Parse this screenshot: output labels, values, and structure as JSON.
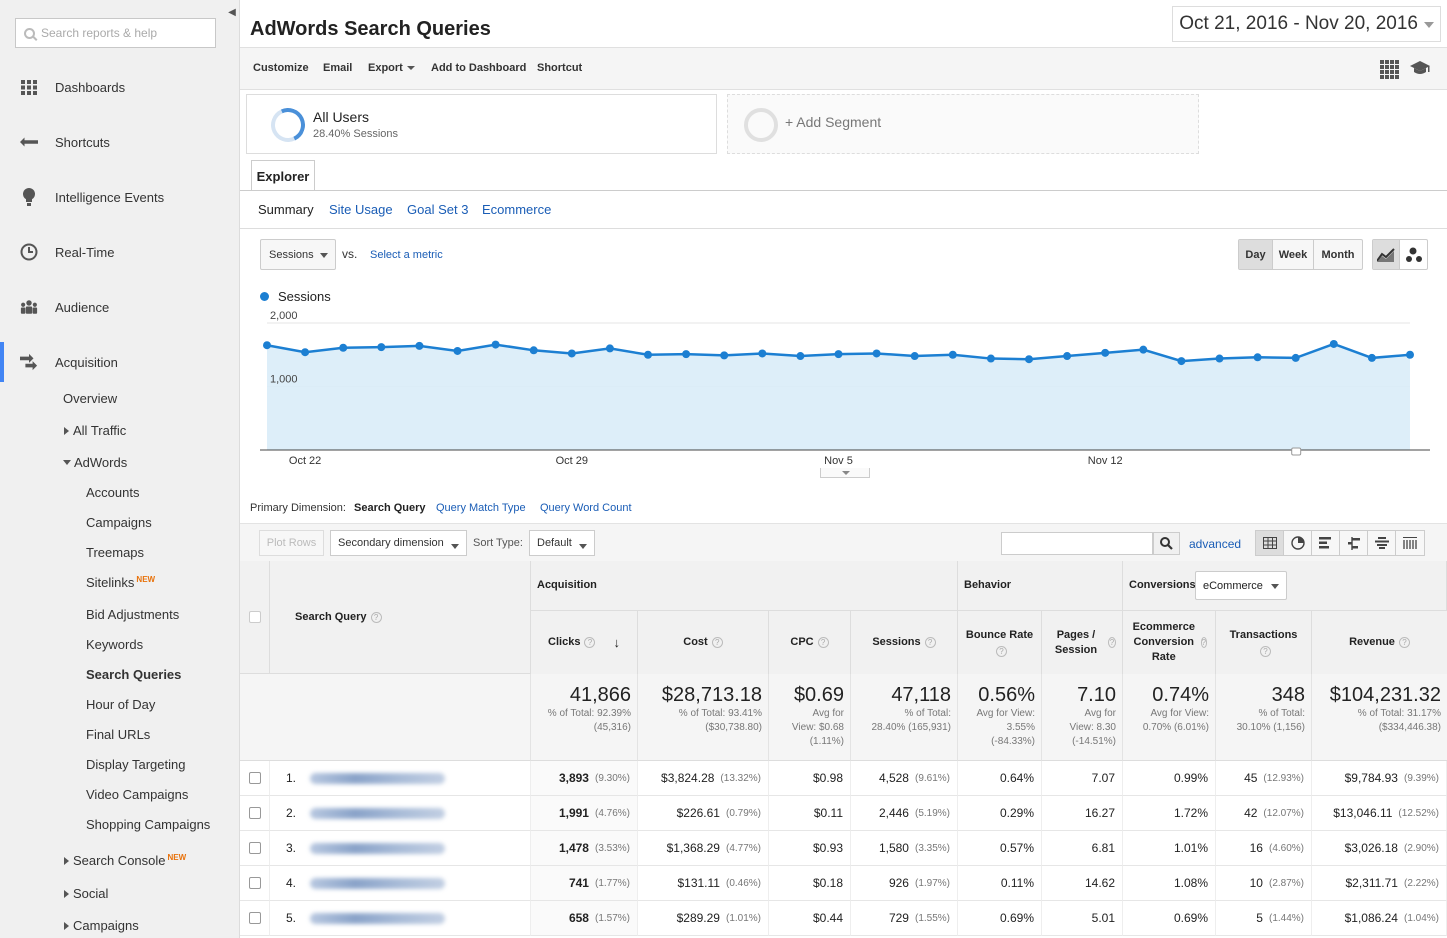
{
  "sidebar": {
    "search_placeholder": "Search reports & help",
    "nav": [
      {
        "label": "Dashboards",
        "icon": "grid-icon"
      },
      {
        "label": "Shortcuts",
        "icon": "shortcut-arrow-icon"
      },
      {
        "label": "Intelligence Events",
        "icon": "lightbulb-icon"
      },
      {
        "label": "Real-Time",
        "icon": "clock-icon"
      },
      {
        "label": "Audience",
        "icon": "people-icon"
      },
      {
        "label": "Acquisition",
        "icon": "acquisition-arrows-icon"
      }
    ],
    "acquisition_children": {
      "overview": "Overview",
      "all_traffic": "All Traffic",
      "adwords": "AdWords",
      "adwords_items": [
        "Accounts",
        "Campaigns",
        "Treemaps",
        "Sitelinks",
        "Bid Adjustments",
        "Keywords",
        "Search Queries",
        "Hour of Day",
        "Final URLs",
        "Display Targeting",
        "Video Campaigns",
        "Shopping Campaigns"
      ],
      "search_console": "Search Console",
      "social": "Social",
      "campaigns": "Campaigns",
      "new_badge": "NEW"
    }
  },
  "header": {
    "title": "AdWords Search Queries",
    "date_range": "Oct 21, 2016 - Nov 20, 2016"
  },
  "toolbar": {
    "customize": "Customize",
    "email": "Email",
    "export": "Export",
    "add_to_dashboard": "Add to Dashboard",
    "shortcut": "Shortcut"
  },
  "segments": {
    "all_users": "All Users",
    "all_users_sub": "28.40% Sessions",
    "add_segment": "+ Add Segment"
  },
  "explorer": {
    "tab": "Explorer",
    "subtabs": [
      "Summary",
      "Site Usage",
      "Goal Set 3",
      "Ecommerce"
    ]
  },
  "chart_controls": {
    "metric": "Sessions",
    "vs": "vs.",
    "select_metric": "Select a metric",
    "periods": [
      "Day",
      "Week",
      "Month"
    ],
    "active_period": "Day"
  },
  "chart_data": {
    "type": "area",
    "series": [
      {
        "name": "Sessions",
        "values": [
          1650,
          1540,
          1610,
          1620,
          1640,
          1560,
          1660,
          1570,
          1520,
          1600,
          1500,
          1510,
          1490,
          1520,
          1480,
          1510,
          1520,
          1480,
          1500,
          1440,
          1430,
          1480,
          1530,
          1580,
          1400,
          1440,
          1460,
          1450,
          1670,
          1450,
          1500
        ]
      }
    ],
    "x_ticks": [
      "Oct 22",
      "Oct 29",
      "Nov 5",
      "Nov 12"
    ],
    "y_ticks": [
      "2,000",
      "1,000"
    ],
    "ylim": [
      0,
      2000
    ],
    "colors": {
      "line": "#1c7fd2",
      "fill": "#d9ecf8"
    }
  },
  "primary_dimension": {
    "label": "Primary Dimension:",
    "current": "Search Query",
    "options": [
      "Query Match Type",
      "Query Word Count"
    ]
  },
  "table_controls": {
    "plot_rows": "Plot Rows",
    "secondary_dimension": "Secondary dimension",
    "sort_type_label": "Sort Type:",
    "sort_type": "Default",
    "advanced": "advanced"
  },
  "table": {
    "dim_header": "Search Query",
    "groups": {
      "acquisition": "Acquisition",
      "behavior": "Behavior",
      "conversions": "Conversions",
      "conversions_select": "eCommerce"
    },
    "columns": [
      "Clicks",
      "Cost",
      "CPC",
      "Sessions",
      "Bounce Rate",
      "Pages / Session",
      "Ecommerce Conversion Rate",
      "Transactions",
      "Revenue"
    ],
    "totals": [
      {
        "value": "41,866",
        "sub": [
          "% of Total: 92.39%",
          "(45,316)"
        ]
      },
      {
        "value": "$28,713.18",
        "sub": [
          "% of Total: 93.41%",
          "($30,738.80)"
        ]
      },
      {
        "value": "$0.69",
        "sub": [
          "Avg for",
          "View: $0.68",
          "(1.11%)"
        ]
      },
      {
        "value": "47,118",
        "sub": [
          "% of Total:",
          "28.40% (165,931)"
        ]
      },
      {
        "value": "0.56%",
        "sub": [
          "Avg for View:",
          "3.55%",
          "(-84.33%)"
        ]
      },
      {
        "value": "7.10",
        "sub": [
          "Avg for",
          "View: 8.30",
          "(-14.51%)"
        ]
      },
      {
        "value": "0.74%",
        "sub": [
          "Avg for View:",
          "0.70% (6.01%)"
        ]
      },
      {
        "value": "348",
        "sub": [
          "% of Total:",
          "30.10% (1,156)"
        ]
      },
      {
        "value": "$104,231.32",
        "sub": [
          "% of Total: 31.17%",
          "($334,446.38)"
        ]
      }
    ],
    "rows": [
      {
        "n": "1.",
        "clicks": "3,893",
        "clicks_pct": "(9.30%)",
        "cost": "$3,824.28",
        "cost_pct": "(13.32%)",
        "cpc": "$0.98",
        "sessions": "4,528",
        "sessions_pct": "(9.61%)",
        "bounce": "0.64%",
        "pps": "7.07",
        "ecr": "0.99%",
        "trans": "45",
        "trans_pct": "(12.93%)",
        "rev": "$9,784.93",
        "rev_pct": "(9.39%)"
      },
      {
        "n": "2.",
        "clicks": "1,991",
        "clicks_pct": "(4.76%)",
        "cost": "$226.61",
        "cost_pct": "(0.79%)",
        "cpc": "$0.11",
        "sessions": "2,446",
        "sessions_pct": "(5.19%)",
        "bounce": "0.29%",
        "pps": "16.27",
        "ecr": "1.72%",
        "trans": "42",
        "trans_pct": "(12.07%)",
        "rev": "$13,046.11",
        "rev_pct": "(12.52%)"
      },
      {
        "n": "3.",
        "clicks": "1,478",
        "clicks_pct": "(3.53%)",
        "cost": "$1,368.29",
        "cost_pct": "(4.77%)",
        "cpc": "$0.93",
        "sessions": "1,580",
        "sessions_pct": "(3.35%)",
        "bounce": "0.57%",
        "pps": "6.81",
        "ecr": "1.01%",
        "trans": "16",
        "trans_pct": "(4.60%)",
        "rev": "$3,026.18",
        "rev_pct": "(2.90%)"
      },
      {
        "n": "4.",
        "clicks": "741",
        "clicks_pct": "(1.77%)",
        "cost": "$131.11",
        "cost_pct": "(0.46%)",
        "cpc": "$0.18",
        "sessions": "926",
        "sessions_pct": "(1.97%)",
        "bounce": "0.11%",
        "pps": "14.62",
        "ecr": "1.08%",
        "trans": "10",
        "trans_pct": "(2.87%)",
        "rev": "$2,311.71",
        "rev_pct": "(2.22%)"
      },
      {
        "n": "5.",
        "clicks": "658",
        "clicks_pct": "(1.57%)",
        "cost": "$289.29",
        "cost_pct": "(1.01%)",
        "cpc": "$0.44",
        "sessions": "729",
        "sessions_pct": "(1.55%)",
        "bounce": "0.69%",
        "pps": "5.01",
        "ecr": "0.69%",
        "trans": "5",
        "trans_pct": "(1.44%)",
        "rev": "$1,086.24",
        "rev_pct": "(1.04%)"
      }
    ]
  }
}
